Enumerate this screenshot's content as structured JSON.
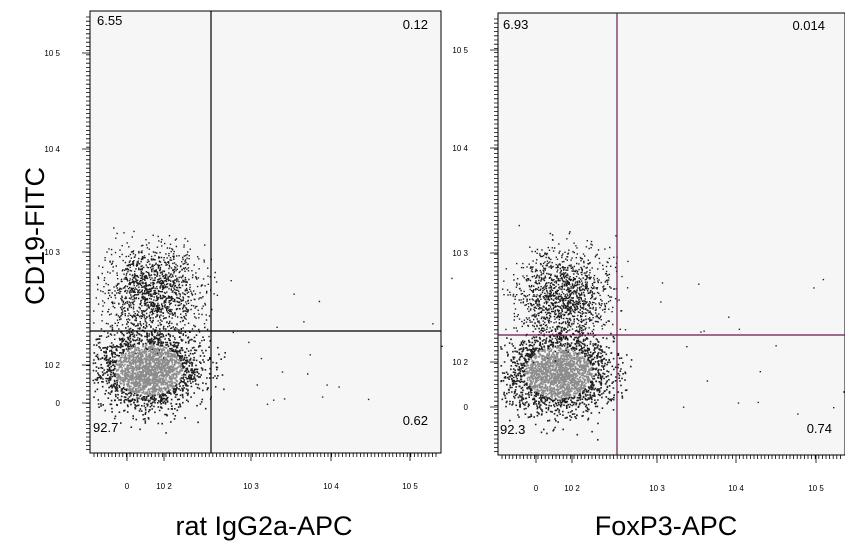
{
  "y_axis_title": "CD19-FITC",
  "chart_data": [
    {
      "type": "scatter",
      "xlabel": "rat IgG2a-APC",
      "ylabel": "CD19-FITC",
      "x_scale": "biexponential",
      "y_scale": "biexponential",
      "x_tick_labels": [
        "0",
        "10 2",
        "10 3",
        "10 4",
        "10 5"
      ],
      "y_tick_labels": [
        "0",
        "10 2",
        "10 3",
        "10 4",
        "10 5"
      ],
      "gate_color": "#000000",
      "quadrant_percentages": {
        "upper_left": "6.55",
        "upper_right": "0.12",
        "lower_left": "92.7",
        "lower_right": "0.62"
      }
    },
    {
      "type": "scatter",
      "xlabel": "FoxP3-APC",
      "ylabel": "",
      "x_scale": "biexponential",
      "y_scale": "biexponential",
      "x_tick_labels": [
        "0",
        "10 2",
        "10 3",
        "10 4",
        "10 5"
      ],
      "y_tick_labels": [
        "0",
        "10 2",
        "10 3",
        "10 4",
        "10 5"
      ],
      "gate_color": "#6a1a4a",
      "quadrant_percentages": {
        "upper_left": "6.93",
        "upper_right": "0.014",
        "lower_left": "92.3",
        "lower_right": "0.74"
      }
    }
  ]
}
